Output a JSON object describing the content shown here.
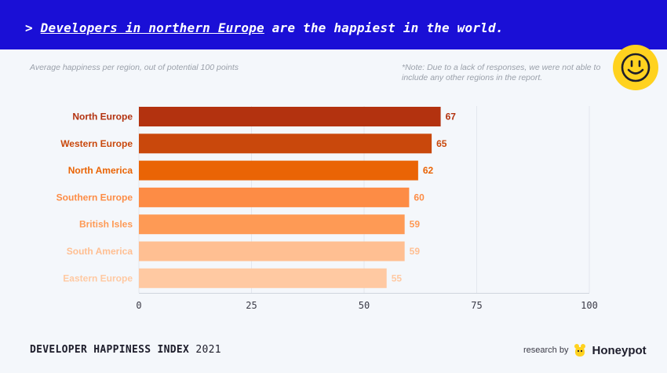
{
  "header": {
    "prefix": "> ",
    "highlight": "Developers in northern Europe",
    "rest": " are the happiest in the world."
  },
  "subtitle": "Average happiness per region, out of potential 100 points",
  "note": "*Note: Due to a lack of responses, we were not able to include any other regions in the report.",
  "footer": {
    "index_title": "DEVELOPER HAPPINESS INDEX",
    "year": "2021",
    "research_by": "research by",
    "brand": "Honeypot"
  },
  "colors": {
    "header_bg": "#1a0fd6",
    "smiley": "#ffd21f"
  },
  "chart_data": {
    "type": "bar",
    "orientation": "horizontal",
    "title": "Average happiness per region, out of potential 100 points",
    "categories": [
      "North Europe",
      "Western Europe",
      "North America",
      "Southern Europe",
      "British Isles",
      "South America",
      "Eastern Europe"
    ],
    "values": [
      67,
      65,
      62,
      60,
      59,
      59,
      55
    ],
    "bar_colors": [
      "#b3320f",
      "#c9480c",
      "#ea6405",
      "#fd8c45",
      "#fe9a55",
      "#ffbf92",
      "#ffc9a2"
    ],
    "label_colors": [
      "#b3320f",
      "#c9480c",
      "#ea6405",
      "#fd8c45",
      "#fe9a55",
      "#ffbf92",
      "#ffc9a2"
    ],
    "xlim": [
      0,
      100
    ],
    "xticks": [
      0,
      25,
      50,
      75,
      100
    ],
    "xlabel": "",
    "ylabel": "",
    "grid": true
  }
}
